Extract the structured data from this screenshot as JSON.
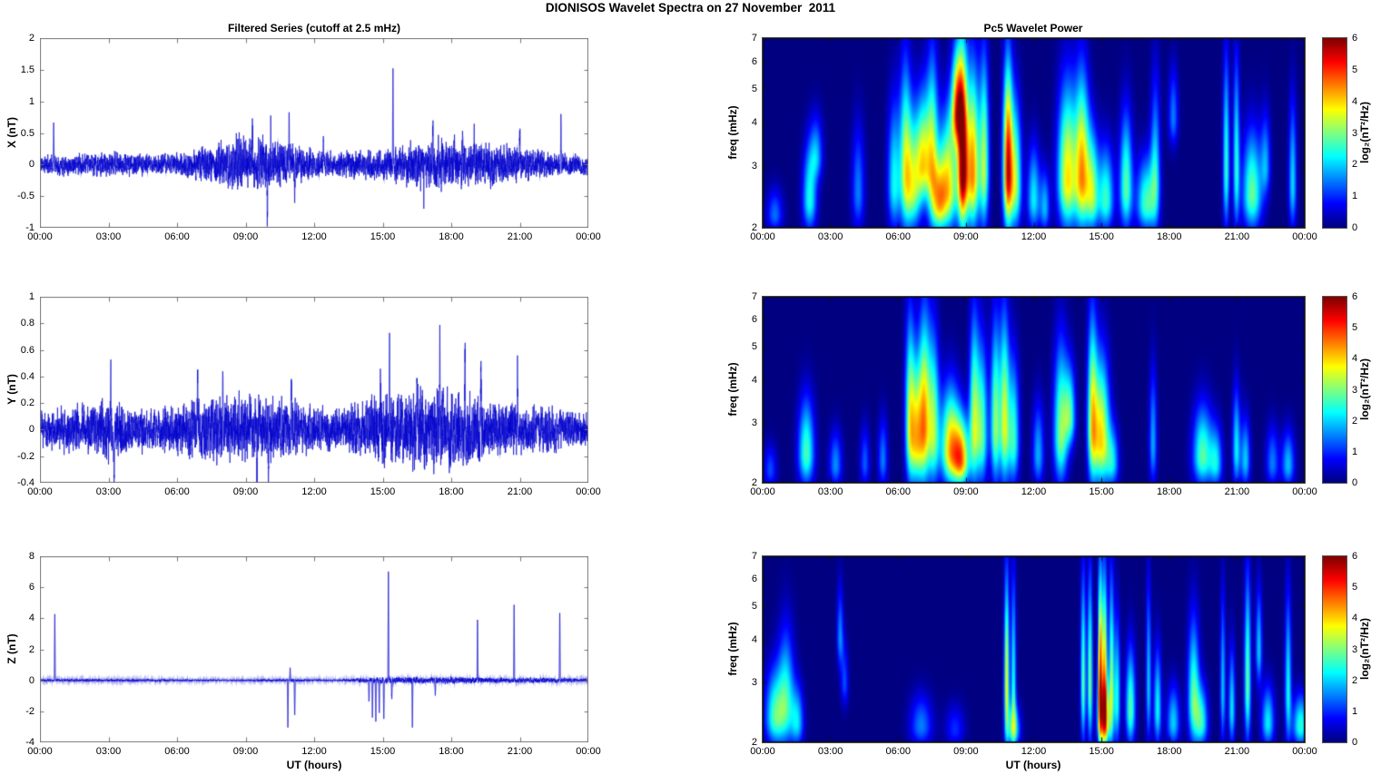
{
  "figure": {
    "title": "DIONISOS Wavelet Spectra on 27 November  2011"
  },
  "columns": {
    "left_title": "Filtered Series (cutoff at 2.5 mHz)",
    "right_title": "Pc5 Wavelet Power",
    "xlabel": "UT (hours)",
    "colorbar_label": "log₂(nT²/Hz)"
  },
  "colors": {
    "series_line": "#0000CC",
    "plot_background": "#FFFFFF",
    "spectrogram_background": "#00008F",
    "axis_box": "#777777",
    "text": "#000000"
  },
  "time_axis": {
    "tick_labels": [
      "00:00",
      "03:00",
      "06:00",
      "09:00",
      "12:00",
      "15:00",
      "18:00",
      "21:00",
      "00:00"
    ],
    "tick_hours": [
      0,
      3,
      6,
      9,
      12,
      15,
      18,
      21,
      24
    ],
    "range_hours": [
      0,
      24
    ]
  },
  "chart_data": [
    {
      "id": "x_filtered_series",
      "type": "line",
      "title": "Filtered Series (cutoff at 2.5 mHz)",
      "ylabel": "X (nT)",
      "ylim": [
        -1,
        2
      ],
      "yticks": [
        -1,
        -0.5,
        0,
        0.5,
        1,
        1.5,
        2
      ],
      "ytick_labels": [
        "-1",
        "-0.5",
        "0",
        "0.5",
        "1",
        "1.5",
        "2"
      ],
      "xlabel": "",
      "grid": false,
      "noise_seed": 11,
      "envelope_nT_per_hour": [
        0.1,
        0.12,
        0.13,
        0.14,
        0.13,
        0.12,
        0.15,
        0.2,
        0.26,
        0.34,
        0.3,
        0.24,
        0.18,
        0.15,
        0.18,
        0.16,
        0.26,
        0.3,
        0.3,
        0.28,
        0.25,
        0.22,
        0.15,
        0.13,
        0.12
      ],
      "spikes_nT": [
        [
          0.6,
          0.72
        ],
        [
          9.3,
          0.55
        ],
        [
          9.95,
          -0.85
        ],
        [
          10.1,
          0.5
        ],
        [
          10.9,
          0.62
        ],
        [
          11.15,
          -0.5
        ],
        [
          12.4,
          0.4
        ],
        [
          15.45,
          1.55
        ],
        [
          16.8,
          -0.45
        ],
        [
          17.2,
          0.55
        ],
        [
          18.5,
          0.5
        ],
        [
          19.0,
          0.45
        ],
        [
          21.0,
          0.55
        ],
        [
          22.8,
          0.78
        ]
      ]
    },
    {
      "id": "y_filtered_series",
      "type": "line",
      "title": "",
      "ylabel": "Y (nT)",
      "ylim": [
        -0.4,
        1
      ],
      "yticks": [
        -0.4,
        -0.2,
        0,
        0.2,
        0.4,
        0.6,
        0.8,
        1
      ],
      "ytick_labels": [
        "-0.4",
        "-0.2",
        "0",
        "0.2",
        "0.4",
        "0.6",
        "0.8",
        "1"
      ],
      "xlabel": "",
      "grid": false,
      "noise_seed": 23,
      "envelope_nT_per_hour": [
        0.1,
        0.12,
        0.13,
        0.18,
        0.12,
        0.11,
        0.14,
        0.17,
        0.18,
        0.18,
        0.18,
        0.16,
        0.13,
        0.11,
        0.16,
        0.2,
        0.21,
        0.22,
        0.22,
        0.2,
        0.16,
        0.14,
        0.12,
        0.11,
        0.1
      ],
      "spikes_nT": [
        [
          3.1,
          0.52
        ],
        [
          3.25,
          -0.36
        ],
        [
          6.9,
          0.4
        ],
        [
          8.0,
          0.45
        ],
        [
          9.5,
          -0.42
        ],
        [
          10.0,
          -0.38
        ],
        [
          11.0,
          0.42
        ],
        [
          14.9,
          0.45
        ],
        [
          15.3,
          0.6
        ],
        [
          16.5,
          0.5
        ],
        [
          17.5,
          0.55
        ],
        [
          18.6,
          0.66
        ],
        [
          19.3,
          0.5
        ],
        [
          20.9,
          0.45
        ]
      ]
    },
    {
      "id": "z_filtered_series",
      "type": "line",
      "title": "",
      "ylabel": "Z (nT)",
      "ylim": [
        -4,
        8
      ],
      "yticks": [
        -4,
        -2,
        0,
        2,
        4,
        6,
        8
      ],
      "ytick_labels": [
        "-4",
        "-2",
        "0",
        "2",
        "4",
        "6",
        "8"
      ],
      "xlabel": "UT (hours)",
      "grid": false,
      "noise_seed": 37,
      "envelope_nT_per_hour": [
        0.07,
        0.07,
        0.08,
        0.07,
        0.07,
        0.08,
        0.06,
        0.05,
        0.05,
        0.05,
        0.07,
        0.09,
        0.06,
        0.05,
        0.12,
        0.16,
        0.15,
        0.15,
        0.17,
        0.15,
        0.13,
        0.13,
        0.13,
        0.11,
        0.09
      ],
      "spikes_nT": [
        [
          0.65,
          4.4
        ],
        [
          10.85,
          -3.3
        ],
        [
          10.95,
          0.8
        ],
        [
          11.15,
          -2.4
        ],
        [
          14.4,
          -1.5
        ],
        [
          14.55,
          -2.6
        ],
        [
          14.7,
          -2.9
        ],
        [
          14.85,
          -2.2
        ],
        [
          15.05,
          -2.6
        ],
        [
          15.25,
          7.8
        ],
        [
          15.4,
          -1.3
        ],
        [
          16.3,
          -3.0
        ],
        [
          17.3,
          -1.0
        ],
        [
          19.15,
          4.0
        ],
        [
          20.75,
          4.9
        ],
        [
          22.75,
          4.4
        ]
      ]
    },
    {
      "id": "x_wavelet_power",
      "type": "heatmap",
      "title": "Pc5 Wavelet Power",
      "ylabel": "freq (mHz)",
      "yscale": "log",
      "ylim_mHz": [
        2,
        7
      ],
      "yticks": [
        2,
        3,
        4,
        5,
        6,
        7
      ],
      "ytick_labels": [
        "2",
        "3",
        "4",
        "5",
        "6",
        "7"
      ],
      "clim": [
        0,
        6
      ],
      "colorbar": {
        "ticks": [
          0,
          1,
          2,
          3,
          4,
          5,
          6
        ],
        "label": "log₂(nT²/Hz)",
        "colormap": "jet"
      },
      "events_t_fLo_fHi_power_sigma": [
        [
          0.5,
          2,
          2.6,
          1.4,
          0.25
        ],
        [
          2.05,
          2,
          3.6,
          2.4,
          0.22
        ],
        [
          2.35,
          2.8,
          4.3,
          1.6,
          0.2
        ],
        [
          4.2,
          2,
          4.2,
          1.5,
          0.2
        ],
        [
          5.8,
          2,
          5,
          2.3,
          0.2
        ],
        [
          6.3,
          2,
          6.8,
          2.8,
          0.18
        ],
        [
          6.65,
          2,
          4.6,
          3.0,
          0.25
        ],
        [
          7.1,
          2.4,
          5.2,
          3.3,
          0.22
        ],
        [
          7.5,
          2,
          7,
          3.1,
          0.18
        ],
        [
          7.8,
          2,
          3.2,
          2.6,
          0.2
        ],
        [
          8.2,
          2,
          4.6,
          3.9,
          0.3
        ],
        [
          8.6,
          3.5,
          7,
          4.2,
          0.18
        ],
        [
          8.85,
          2,
          7,
          5.9,
          0.16
        ],
        [
          9.3,
          2,
          6.3,
          4.4,
          0.2
        ],
        [
          9.8,
          2,
          7,
          3.2,
          0.15
        ],
        [
          10.85,
          2,
          6.6,
          5.3,
          0.15
        ],
        [
          11.2,
          2,
          5,
          3.1,
          0.18
        ],
        [
          12.0,
          2,
          3.6,
          2.2,
          0.2
        ],
        [
          12.5,
          2,
          3,
          1.8,
          0.15
        ],
        [
          13.5,
          2,
          5.6,
          3.9,
          0.3
        ],
        [
          14.15,
          2,
          6,
          4.0,
          0.22
        ],
        [
          14.6,
          2,
          4,
          3.0,
          0.2
        ],
        [
          15.2,
          2,
          3.6,
          2.6,
          0.25
        ],
        [
          16.1,
          2,
          4.6,
          2.8,
          0.2
        ],
        [
          17.0,
          2,
          3.3,
          2.7,
          0.3
        ],
        [
          17.4,
          2,
          6,
          2.0,
          0.15
        ],
        [
          18.2,
          3.5,
          6,
          1.5,
          0.15
        ],
        [
          20.55,
          2,
          7,
          2.6,
          0.1
        ],
        [
          21.0,
          2,
          7,
          2.4,
          0.1
        ],
        [
          21.7,
          2,
          4,
          2.9,
          0.3
        ],
        [
          22.3,
          2.5,
          4.5,
          1.6,
          0.15
        ],
        [
          23.5,
          2,
          5,
          2.1,
          0.12
        ]
      ]
    },
    {
      "id": "y_wavelet_power",
      "type": "heatmap",
      "title": "",
      "ylabel": "freq (mHz)",
      "yscale": "log",
      "ylim_mHz": [
        2,
        7
      ],
      "yticks": [
        2,
        3,
        4,
        5,
        6,
        7
      ],
      "ytick_labels": [
        "2",
        "3",
        "4",
        "5",
        "6",
        "7"
      ],
      "clim": [
        0,
        6
      ],
      "colorbar": {
        "ticks": [
          0,
          1,
          2,
          3,
          4,
          5,
          6
        ],
        "label": "log₂(nT²/Hz)",
        "colormap": "jet"
      },
      "events_t_fLo_fHi_power_sigma": [
        [
          0.3,
          2,
          2.6,
          1.2,
          0.2
        ],
        [
          1.9,
          2,
          3.7,
          2.7,
          0.25
        ],
        [
          3.2,
          2,
          2.9,
          1.6,
          0.2
        ],
        [
          4.5,
          2,
          3,
          1.3,
          0.15
        ],
        [
          5.3,
          2,
          3.2,
          1.5,
          0.15
        ],
        [
          6.5,
          2,
          7,
          2.9,
          0.15
        ],
        [
          6.8,
          2,
          5,
          3.4,
          0.2
        ],
        [
          7.15,
          2,
          7,
          3.7,
          0.18
        ],
        [
          7.55,
          2,
          6,
          3.0,
          0.18
        ],
        [
          8.3,
          2,
          4,
          4.0,
          0.3
        ],
        [
          8.8,
          2,
          3.2,
          3.9,
          0.25
        ],
        [
          9.35,
          2,
          7,
          3.0,
          0.15
        ],
        [
          9.7,
          2,
          5.6,
          2.8,
          0.18
        ],
        [
          10.3,
          2,
          6.6,
          3.1,
          0.15
        ],
        [
          10.7,
          2,
          7,
          3.4,
          0.15
        ],
        [
          11.1,
          2,
          5,
          2.6,
          0.18
        ],
        [
          12.2,
          2,
          3.6,
          1.8,
          0.18
        ],
        [
          13.2,
          2,
          5.6,
          3.0,
          0.22
        ],
        [
          13.6,
          2.6,
          4.6,
          2.5,
          0.18
        ],
        [
          14.6,
          2,
          7,
          3.3,
          0.15
        ],
        [
          15.0,
          2,
          5,
          3.9,
          0.25
        ],
        [
          15.5,
          2,
          3,
          2.0,
          0.2
        ],
        [
          17.3,
          2,
          4.6,
          1.8,
          0.12
        ],
        [
          19.5,
          2,
          3.5,
          2.8,
          0.3
        ],
        [
          20.1,
          2,
          3,
          2.0,
          0.2
        ],
        [
          21.0,
          2,
          4,
          2.2,
          0.12
        ],
        [
          21.4,
          2,
          3.2,
          2.0,
          0.15
        ],
        [
          22.6,
          2,
          3,
          1.5,
          0.2
        ],
        [
          23.3,
          2,
          2.9,
          1.9,
          0.2
        ]
      ]
    },
    {
      "id": "z_wavelet_power",
      "type": "heatmap",
      "title": "",
      "ylabel": "freq (mHz)",
      "yscale": "log",
      "ylim_mHz": [
        2,
        7
      ],
      "yticks": [
        2,
        3,
        4,
        5,
        6,
        7
      ],
      "ytick_labels": [
        "2",
        "3",
        "4",
        "5",
        "6",
        "7"
      ],
      "clim": [
        0,
        6
      ],
      "colorbar": {
        "ticks": [
          0,
          1,
          2,
          3,
          4,
          5,
          6
        ],
        "label": "log₂(nT²/Hz)",
        "colormap": "jet"
      },
      "events_t_fLo_fHi_power_sigma": [
        [
          0.5,
          2,
          3.4,
          2.6,
          0.3
        ],
        [
          1.0,
          2,
          4.6,
          2.3,
          0.25
        ],
        [
          1.5,
          2,
          3,
          2.0,
          0.2
        ],
        [
          3.4,
          3.4,
          6,
          1.6,
          0.1
        ],
        [
          3.6,
          2.6,
          4,
          1.2,
          0.12
        ],
        [
          7.0,
          2,
          2.8,
          1.5,
          0.35
        ],
        [
          8.5,
          2,
          2.6,
          1.0,
          0.3
        ],
        [
          10.8,
          2,
          7,
          3.7,
          0.08
        ],
        [
          11.1,
          2,
          7,
          2.4,
          0.08
        ],
        [
          11.1,
          2,
          2.6,
          2.6,
          0.2
        ],
        [
          14.2,
          2,
          7,
          2.9,
          0.08
        ],
        [
          14.5,
          2,
          7,
          3.1,
          0.08
        ],
        [
          14.95,
          2,
          7,
          5.2,
          0.07
        ],
        [
          15.15,
          2,
          7,
          4.3,
          0.08
        ],
        [
          15.15,
          2,
          3,
          3.5,
          0.2
        ],
        [
          15.45,
          2,
          7,
          3.0,
          0.08
        ],
        [
          15.7,
          2,
          5,
          2.4,
          0.1
        ],
        [
          16.3,
          2,
          4,
          2.8,
          0.15
        ],
        [
          17.1,
          2,
          6.6,
          2.0,
          0.08
        ],
        [
          17.5,
          2,
          4,
          2.3,
          0.12
        ],
        [
          18.2,
          2,
          3,
          2.0,
          0.2
        ],
        [
          19.1,
          2,
          5,
          2.7,
          0.18
        ],
        [
          19.45,
          2,
          3,
          2.4,
          0.2
        ],
        [
          20.4,
          2,
          6,
          2.0,
          0.08
        ],
        [
          20.8,
          2,
          4,
          2.2,
          0.1
        ],
        [
          21.5,
          2,
          7,
          2.9,
          0.1
        ],
        [
          22.0,
          3,
          6,
          2.0,
          0.1
        ],
        [
          22.4,
          2,
          3,
          2.2,
          0.2
        ],
        [
          23.3,
          2,
          6,
          2.3,
          0.1
        ],
        [
          23.85,
          2,
          2.8,
          2.5,
          0.25
        ]
      ]
    }
  ]
}
